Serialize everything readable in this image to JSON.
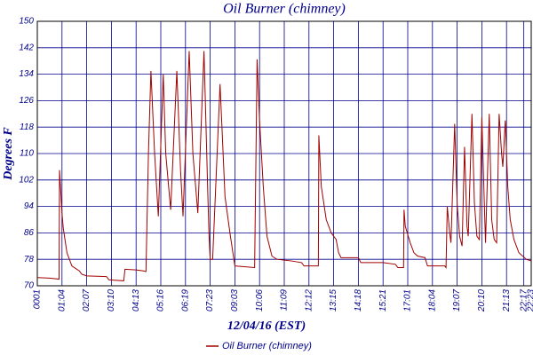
{
  "chart_data": {
    "type": "line",
    "title": "Oil Burner (chimney)",
    "xlabel": "12/04/16 (EST)",
    "ylabel": "Degrees F",
    "x": [
      0,
      5,
      8.8,
      9,
      10,
      10.5,
      12,
      14,
      17,
      18,
      20,
      28,
      29,
      35,
      35.5,
      40,
      43,
      44,
      45,
      46,
      47.5,
      49,
      51,
      52,
      54,
      56.5,
      58,
      59,
      61.5,
      63,
      65,
      67.5,
      69,
      69.5,
      70,
      71,
      74,
      76,
      78,
      80,
      88,
      89,
      90,
      91.5,
      93,
      95,
      97,
      103,
      107,
      108,
      113.8,
      114,
      115,
      117,
      119,
      121,
      122,
      123,
      130,
      131,
      140,
      145,
      146,
      148.3,
      148.5,
      149,
      151,
      152.5,
      154,
      157,
      158,
      165,
      165.5,
      166,
      167,
      167.5,
      169,
      170,
      171,
      172,
      173,
      174,
      174.5,
      176,
      177,
      178,
      179,
      180,
      181,
      181.5,
      183,
      184,
      185,
      186,
      187,
      188,
      188.5,
      189.5,
      190.5,
      191.5,
      193,
      195,
      198,
      200
    ],
    "series": [
      {
        "name": "Oil Burner (chimney)",
        "color": "#a00000",
        "values": [
          72.5,
          72.3,
          72,
          105,
          92,
          87.5,
          80,
          76,
          74.5,
          73.5,
          73,
          72.8,
          71.8,
          71.5,
          75,
          74.8,
          74.5,
          74.3,
          110,
          135,
          110,
          91,
          134,
          110,
          93,
          135,
          105,
          91,
          141,
          110,
          92,
          141,
          99,
          86,
          78,
          78,
          131,
          97,
          86,
          76,
          75.5,
          138.5,
          120,
          100,
          85,
          79,
          78,
          77.5,
          77,
          76,
          76,
          115.5,
          100,
          90,
          86,
          84,
          80,
          78.5,
          78.5,
          77,
          77,
          76.5,
          75.5,
          75.5,
          93,
          88,
          83,
          80,
          79,
          78.5,
          76,
          76,
          75.5,
          94,
          86,
          83,
          119,
          95,
          85,
          82,
          112,
          88,
          85,
          122,
          95,
          85,
          84,
          121,
          95,
          83,
          122,
          90,
          84,
          83,
          122,
          110,
          106,
          120,
          100,
          90,
          84,
          80,
          78,
          77.5
        ]
      }
    ],
    "xlim": [
      0,
      200
    ],
    "xticks": [
      {
        "value": 0,
        "label": "0001"
      },
      {
        "value": 10,
        "label": "01:04"
      },
      {
        "value": 20,
        "label": "02:07"
      },
      {
        "value": 30,
        "label": "03:10"
      },
      {
        "value": 40,
        "label": "04:13"
      },
      {
        "value": 50,
        "label": "05:16"
      },
      {
        "value": 60,
        "label": "06:19"
      },
      {
        "value": 70,
        "label": "07:23"
      },
      {
        "value": 80,
        "label": "09:03"
      },
      {
        "value": 90,
        "label": "10:06"
      },
      {
        "value": 100,
        "label": "11:09"
      },
      {
        "value": 110,
        "label": "12:12"
      },
      {
        "value": 120,
        "label": "13:15"
      },
      {
        "value": 130,
        "label": "14:18"
      },
      {
        "value": 140,
        "label": "15:21"
      },
      {
        "value": 150,
        "label": "17:01"
      },
      {
        "value": 160,
        "label": "18:04"
      },
      {
        "value": 170,
        "label": "19:07"
      },
      {
        "value": 180,
        "label": "20:10"
      },
      {
        "value": 190,
        "label": "21:13"
      },
      {
        "value": 197,
        "label": "22:17"
      },
      {
        "value": 200,
        "label": "22:23"
      }
    ],
    "ylim": [
      70,
      150
    ],
    "yticks": [
      70,
      78,
      86,
      94,
      102,
      110,
      118,
      126,
      134,
      142,
      150
    ],
    "grid": true
  }
}
